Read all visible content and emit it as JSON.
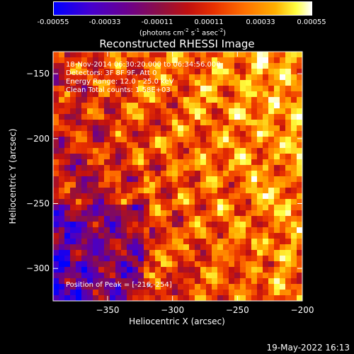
{
  "colorbar": {
    "ticks": [
      "-0.00055",
      "-0.00033",
      "-0.00011",
      "0.00011",
      "0.00033",
      "0.00055"
    ],
    "unit_main": "(photons cm",
    "unit_exp1": "-2",
    "unit_mid": " s",
    "unit_exp2": "-1",
    "unit_mid2": " asec",
    "unit_exp3": "-2",
    "unit_end": ")"
  },
  "annotations": {
    "line1": "18-Nov-2014 06:30:20.000 to 06:34:56.000",
    "line2": "Detectors: 3F 8F 9F, Att 0",
    "line3": "Energy Range: 12.0 - 25.0 keV",
    "line4": "Clean     Total counts: 1.58E+03",
    "peak": "Position of Peak = [-216,-254]"
  },
  "footer": {
    "date": "19-May-2022 16:13"
  },
  "chart_data": {
    "type": "heatmap",
    "title": "Reconstructed RHESSI Image",
    "xlabel": "Heliocentric X (arcsec)",
    "ylabel": "Heliocentric Y (arcsec)",
    "xlim": [
      -392,
      -200
    ],
    "ylim": [
      -325,
      -133
    ],
    "xticks": [
      -350,
      -300,
      -250,
      -200
    ],
    "yticks": [
      -150,
      -200,
      -250,
      -300
    ],
    "zlim": [
      -0.00055,
      0.00055
    ],
    "peak": [
      -216,
      -254
    ],
    "colors": [
      "#0000ff",
      "#4400d0",
      "#6a0090",
      "#901040",
      "#c01010",
      "#e83000",
      "#ff7000",
      "#ffb000",
      "#ffff40",
      "#ffffff"
    ]
  }
}
